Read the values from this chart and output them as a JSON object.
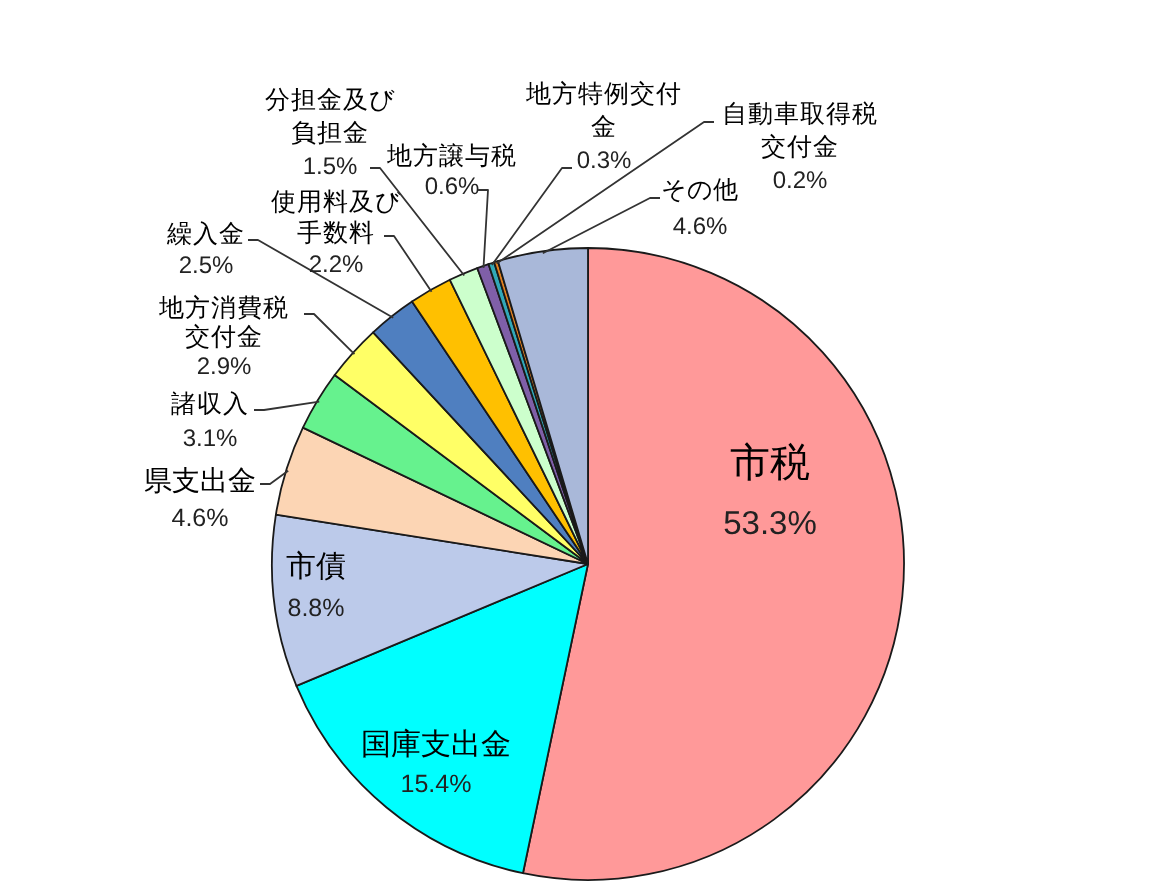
{
  "chart_data": {
    "type": "pie",
    "categories": [
      "市税",
      "国庫支出金",
      "市債",
      "県支出金",
      "諸収入",
      "地方消費税交付金",
      "繰入金",
      "使用料及び手数料",
      "分担金及び負担金",
      "地方譲与税",
      "地方特例交付金",
      "自動車取得税交付金",
      "その他"
    ],
    "values": [
      53.3,
      15.4,
      8.8,
      4.6,
      3.1,
      2.9,
      2.5,
      2.2,
      1.5,
      0.6,
      0.3,
      0.2,
      4.6
    ],
    "value_labels": [
      "53.3%",
      "15.4%",
      "8.8%",
      "4.6%",
      "3.1%",
      "2.9%",
      "2.5%",
      "2.2%",
      "1.5%",
      "0.6%",
      "0.3%",
      "0.2%",
      "4.6%"
    ],
    "colors": [
      "#ff9999",
      "#00ffff",
      "#bccaea",
      "#fcd5b4",
      "#66f28e",
      "#ffff66",
      "#4f7fc0",
      "#ffc000",
      "#ccffcc",
      "#7f5fa8",
      "#31a8b8",
      "#e08020",
      "#a9b8d9"
    ]
  }
}
